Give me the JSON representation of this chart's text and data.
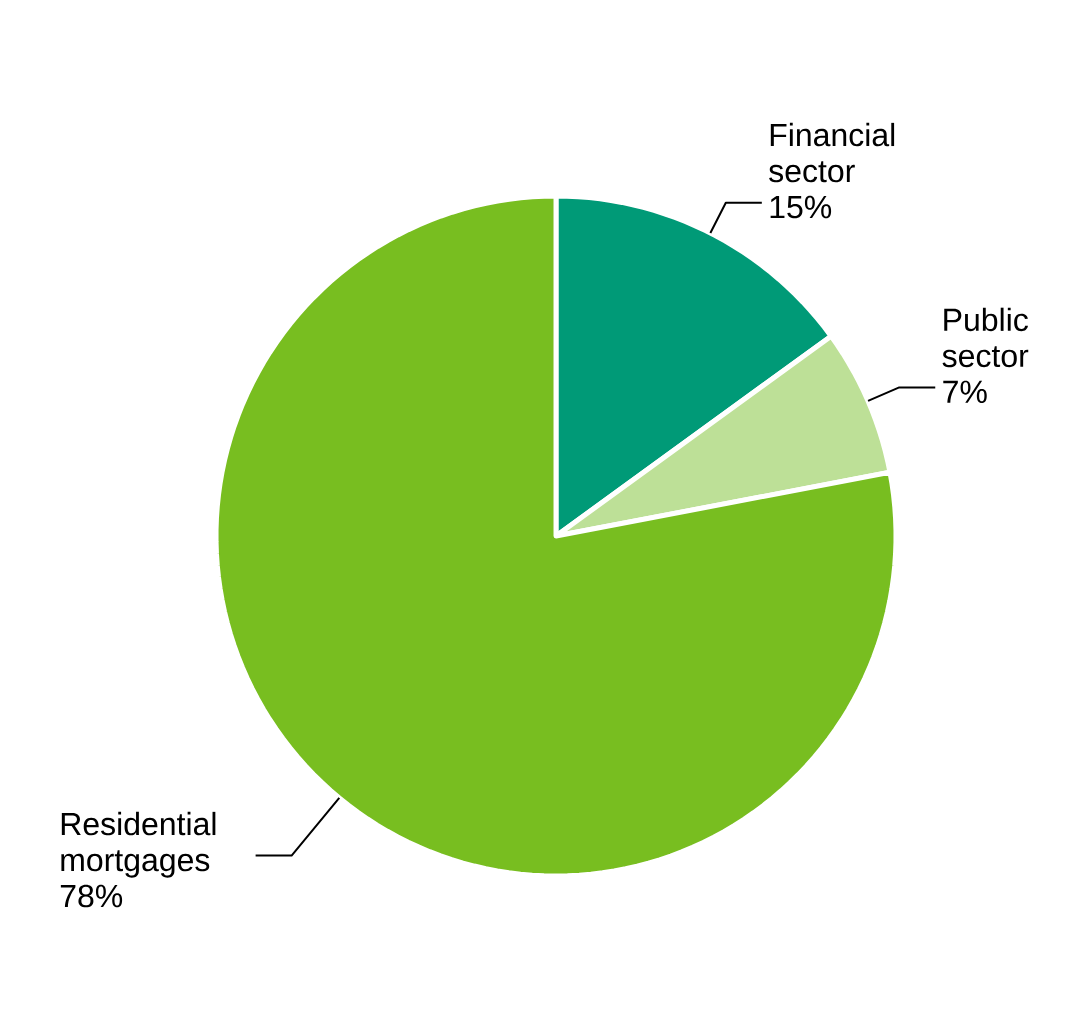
{
  "chart_data": {
    "type": "pie",
    "categories": [
      "Financial sector",
      "Public sector",
      "Residential mortgages"
    ],
    "values": [
      15,
      7,
      78
    ],
    "value_labels": [
      "15%",
      "7%",
      "78%"
    ],
    "colors": [
      "#009a77",
      "#bde097",
      "#78be20"
    ]
  }
}
